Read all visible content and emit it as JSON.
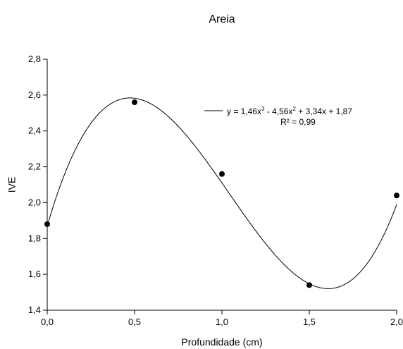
{
  "chart_data": {
    "type": "scatter",
    "title": "Areia",
    "xlabel": "Profundidade (cm)",
    "ylabel": "IVE",
    "xlim": [
      0.0,
      2.0
    ],
    "ylim": [
      1.4,
      2.8
    ],
    "x_ticks": [
      "0,0",
      "0,5",
      "1,0",
      "1,5",
      "2,0"
    ],
    "y_ticks": [
      "1,4",
      "1,6",
      "1,8",
      "2,0",
      "2,2",
      "2,4",
      "2,6",
      "2,8"
    ],
    "points": [
      {
        "x": 0.0,
        "y": 1.88
      },
      {
        "x": 0.5,
        "y": 2.56
      },
      {
        "x": 1.0,
        "y": 2.16
      },
      {
        "x": 1.5,
        "y": 1.54
      },
      {
        "x": 2.0,
        "y": 2.04
      }
    ],
    "fit": {
      "coefficients": {
        "a3": 1.46,
        "a2": -4.56,
        "a1": 3.34,
        "a0": 1.87
      },
      "equation_parts": {
        "prefix": "y = 1,46x",
        "exp1": "3",
        "mid1": " - 4,56x",
        "exp2": "2",
        "mid2": " + 3,34x + 1,87"
      },
      "r2_label": "R² = 0,99"
    },
    "grid": false,
    "legend_position": "top-right"
  }
}
